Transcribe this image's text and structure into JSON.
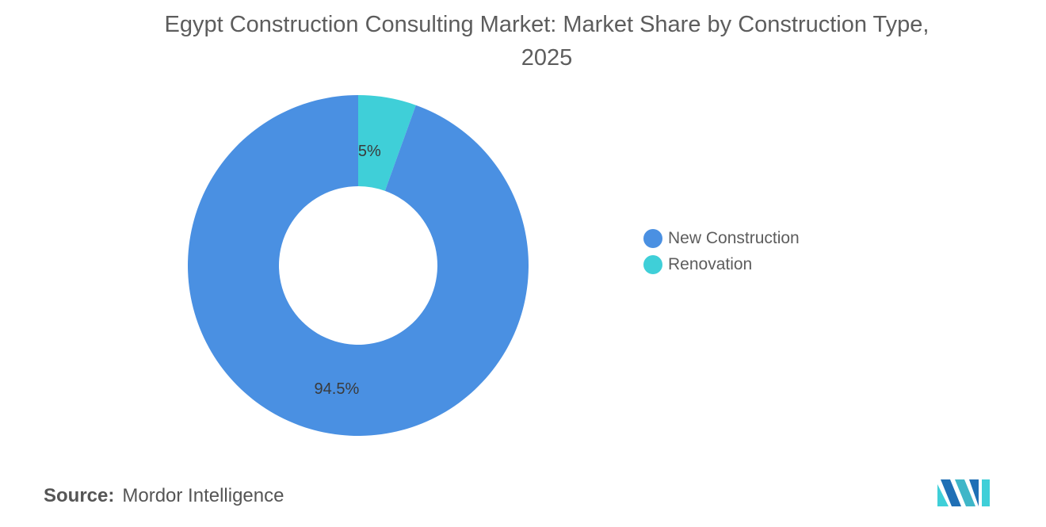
{
  "title": {
    "line1": "Egypt Construction Consulting Market: Market Share by Construction Type,",
    "line2": "2025"
  },
  "source": {
    "label": "Source:",
    "value": "Mordor Intelligence"
  },
  "logo": {
    "icon": "mordor-intelligence-logo"
  },
  "chart_data": {
    "type": "pie",
    "variant": "donut",
    "title": "Egypt Construction Consulting Market: Market Share by Construction Type, 2025",
    "legend_position": "right",
    "slices": [
      {
        "label": "Renovation",
        "value": 5.5,
        "display": "5.5%",
        "color": "#3fcfd8"
      },
      {
        "label": "New Construction",
        "value": 94.5,
        "display": "94.5%",
        "color": "#4a90e2"
      }
    ],
    "legend": [
      {
        "label": "New Construction",
        "color": "#4a90e2"
      },
      {
        "label": "Renovation",
        "color": "#3fcfd8"
      }
    ]
  }
}
